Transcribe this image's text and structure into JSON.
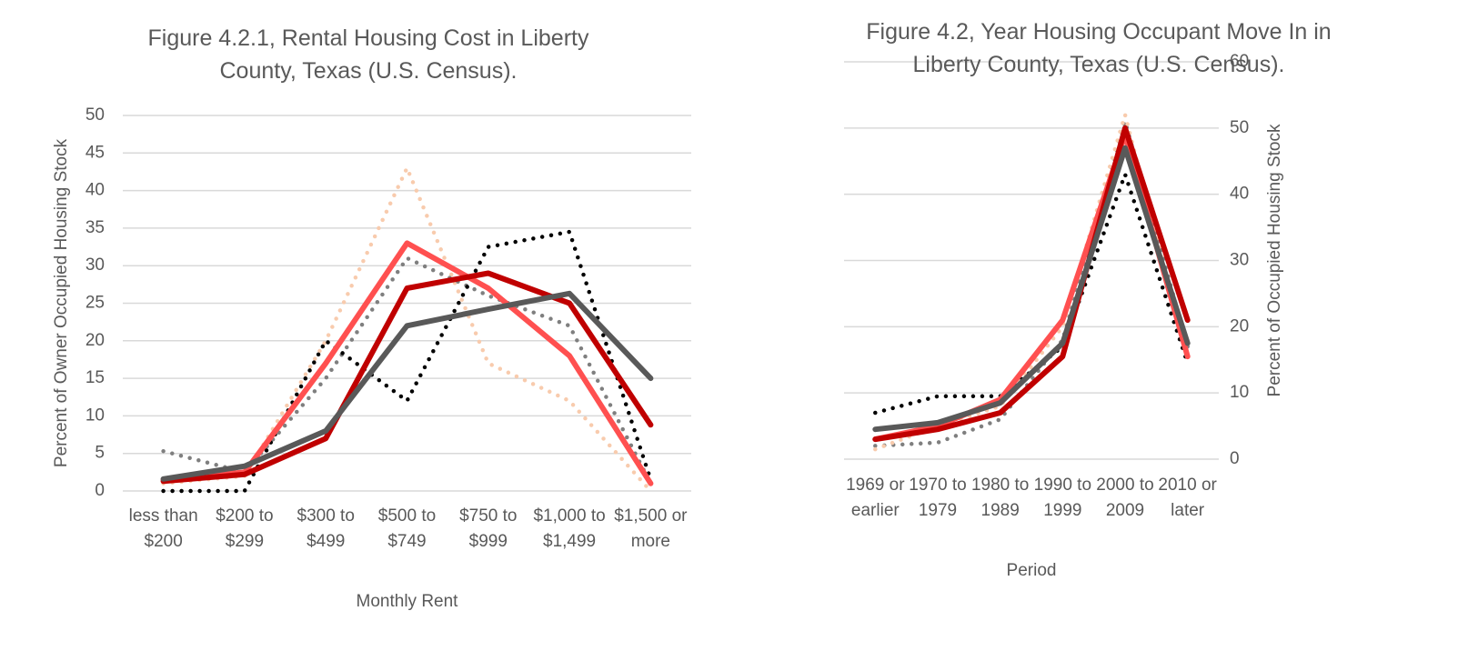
{
  "chart_data": [
    {
      "type": "line",
      "title": "Figure 4.2.1, Rental Housing Cost in Liberty County, Texas (U.S. Census).",
      "x_label": "Monthly Rent",
      "y_label": "Percent of Owner Occupied Housing Stock",
      "categories": [
        "less than $200",
        "$200 to $299",
        "$300 to $499",
        "$500 to $749",
        "$750 to $999",
        "$1,000 to $1,499",
        "$1,500 or more"
      ],
      "ylim": [
        0,
        50
      ],
      "yticks": [
        0,
        5,
        10,
        15,
        20,
        25,
        30,
        35,
        40,
        45,
        50
      ],
      "grid": true,
      "y_axis_side": "left",
      "series": [
        {
          "color": "#f8cbad",
          "style": "dotted",
          "values": [
            1,
            2,
            20,
            43,
            17,
            12,
            0
          ]
        },
        {
          "color": "#7f7f7f",
          "style": "dotted",
          "values": [
            5.3,
            2.5,
            15,
            31,
            26,
            22,
            1
          ]
        },
        {
          "color": "#000000",
          "style": "dotted",
          "values": [
            0,
            0,
            20,
            12,
            32.5,
            34.5,
            1.5
          ]
        },
        {
          "color": "#ff5050",
          "style": "solid",
          "values": [
            1.5,
            2.5,
            17,
            33,
            27,
            18,
            1
          ]
        },
        {
          "color": "#c00000",
          "style": "solid",
          "values": [
            1.3,
            2.2,
            7,
            27,
            29,
            25,
            8.8
          ]
        },
        {
          "color": "#595959",
          "style": "solid",
          "values": [
            1.6,
            3.3,
            8,
            22,
            24.2,
            26.3,
            15
          ]
        }
      ]
    },
    {
      "type": "line",
      "title": "Figure 4.2, Year Housing Occupant Move In in Liberty County, Texas (U.S. Census).",
      "x_label": "Period",
      "y_label": "Percent of Occupied Housing Stock",
      "categories": [
        "1969 or earlier",
        "1970 to 1979",
        "1980 to 1989",
        "1990 to 1999",
        "2000 to 2009",
        "2010 or later"
      ],
      "ylim": [
        0,
        60
      ],
      "yticks": [
        0,
        10,
        20,
        30,
        40,
        50,
        60
      ],
      "grid": true,
      "y_axis_side": "right",
      "series": [
        {
          "color": "#000000",
          "style": "dotted",
          "values": [
            7,
            9.5,
            9.5,
            17,
            43,
            14.5
          ]
        },
        {
          "color": "#7f7f7f",
          "style": "dotted",
          "values": [
            2,
            2.5,
            6,
            18,
            51,
            17
          ]
        },
        {
          "color": "#f8cbad",
          "style": "dotted",
          "values": [
            1.5,
            5,
            8,
            20,
            52,
            15
          ]
        },
        {
          "color": "#ff5050",
          "style": "solid",
          "values": [
            3,
            5,
            9,
            21,
            49,
            15.5
          ]
        },
        {
          "color": "#c00000",
          "style": "solid",
          "values": [
            3,
            4.5,
            7,
            15.5,
            50,
            21
          ]
        },
        {
          "color": "#595959",
          "style": "solid",
          "values": [
            4.5,
            5.5,
            8.5,
            17.5,
            47,
            17.5
          ]
        }
      ]
    }
  ]
}
